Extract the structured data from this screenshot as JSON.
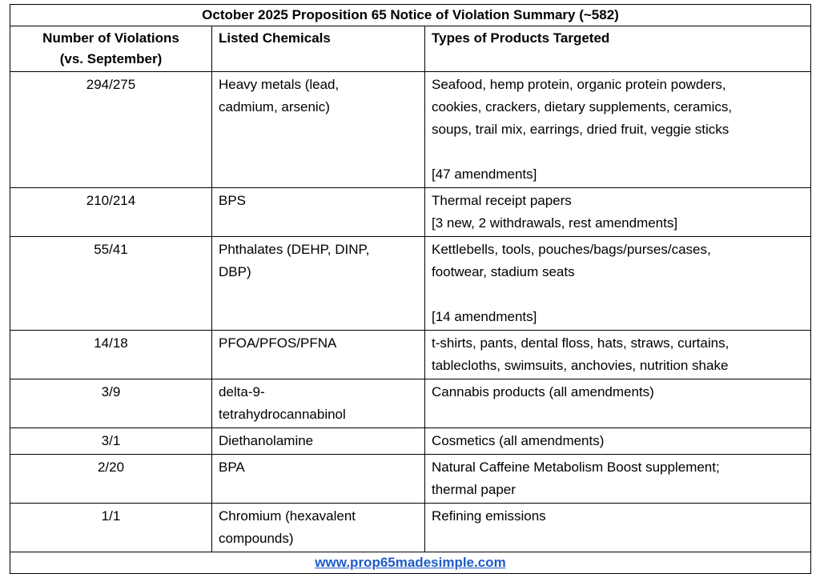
{
  "table": {
    "title": "October 2025 Proposition 65 Notice of Violation Summary (~582)",
    "headers": [
      [
        "Number of Violations",
        "(vs. September)"
      ],
      [
        "Listed Chemicals"
      ],
      [
        "Types of Products Targeted"
      ]
    ],
    "rows": [
      {
        "count": "294/275",
        "chemicals": [
          "Heavy metals (lead,",
          "cadmium, arsenic)"
        ],
        "products": [
          "Seafood, hemp protein, organic protein powders,",
          "cookies, crackers, dietary supplements, ceramics,",
          "soups, trail mix, earrings, dried fruit, veggie sticks"
        ],
        "note": "[47 amendments]"
      },
      {
        "count": "210/214",
        "chemicals": [
          "BPS"
        ],
        "products": [
          "Thermal receipt papers",
          "[3 new, 2 withdrawals, rest amendments]"
        ]
      },
      {
        "count": "55/41",
        "chemicals": [
          "Phthalates (DEHP, DINP,",
          "DBP)"
        ],
        "products": [
          "Kettlebells, tools, pouches/bags/purses/cases,",
          "footwear, stadium seats"
        ],
        "note": "[14 amendments]"
      },
      {
        "count": "14/18",
        "chemicals": [
          "PFOA/PFOS/PFNA"
        ],
        "products": [
          "t-shirts, pants, dental floss, hats, straws, curtains,",
          "tablecloths, swimsuits, anchovies, nutrition shake"
        ]
      },
      {
        "count": "3/9",
        "chemicals": [
          "delta-9-",
          "tetrahydrocannabinol"
        ],
        "products": [
          "Cannabis products (all amendments)"
        ]
      },
      {
        "count": "3/1",
        "chemicals": [
          "Diethanolamine"
        ],
        "products": [
          "Cosmetics (all amendments)"
        ]
      },
      {
        "count": "2/20",
        "chemicals": [
          "BPA"
        ],
        "products": [
          "Natural Caffeine Metabolism Boost supplement;",
          "thermal paper"
        ]
      },
      {
        "count": "1/1",
        "chemicals": [
          "Chromium (hexavalent",
          "compounds)"
        ],
        "products": [
          "Refining emissions"
        ]
      }
    ],
    "footer": "www.prop65madesimple.com"
  }
}
